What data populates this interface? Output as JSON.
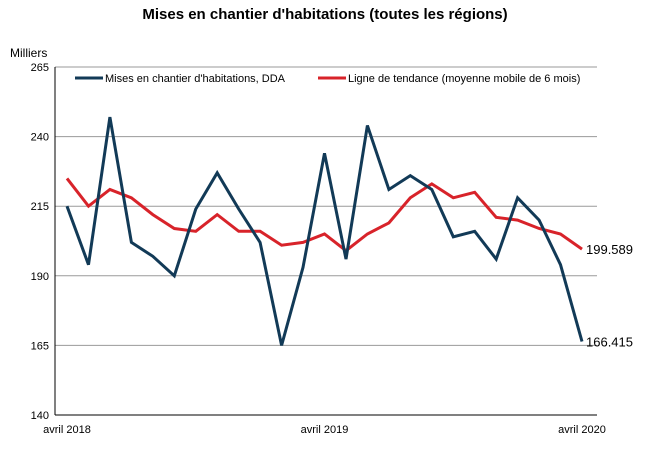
{
  "chart_data": {
    "type": "line",
    "title": "Mises en chantier d'habitations (toutes les régions)",
    "ylabel": "Milliers",
    "xlabel": "",
    "ylim": [
      140,
      265
    ],
    "yticks": [
      "140",
      "165",
      "190",
      "215",
      "240",
      "265"
    ],
    "xtick_labels": [
      {
        "label": "avril 2018",
        "index": 0
      },
      {
        "label": "avril 2019",
        "index": 12
      },
      {
        "label": "avril 2020",
        "index": 24
      }
    ],
    "x": [
      "2018-04",
      "2018-05",
      "2018-06",
      "2018-07",
      "2018-08",
      "2018-09",
      "2018-10",
      "2018-11",
      "2018-12",
      "2019-01",
      "2019-02",
      "2019-03",
      "2019-04",
      "2019-05",
      "2019-06",
      "2019-07",
      "2019-08",
      "2019-09",
      "2019-10",
      "2019-11",
      "2019-12",
      "2020-01",
      "2020-02",
      "2020-03",
      "2020-04"
    ],
    "series": [
      {
        "name": "Mises en chantier d'habitations, DDA",
        "color": "#123a57",
        "values": [
          215,
          194,
          247,
          202,
          197,
          190,
          214,
          227,
          214,
          202,
          165,
          193,
          234,
          196,
          244,
          221,
          226,
          221,
          204,
          206,
          196,
          218,
          210,
          194,
          166.415
        ],
        "end_label": "166.415"
      },
      {
        "name": "Ligne de tendance (moyenne mobile de 6 mois)",
        "color": "#d8232a",
        "values": [
          225,
          215,
          221,
          218,
          212,
          207,
          206,
          212,
          206,
          206,
          201,
          202,
          205,
          199,
          205,
          209,
          218,
          223,
          218,
          220,
          211,
          210,
          207,
          205,
          199.589
        ],
        "end_label": "199.589"
      }
    ],
    "legend": "top",
    "grid": "horizontal"
  }
}
